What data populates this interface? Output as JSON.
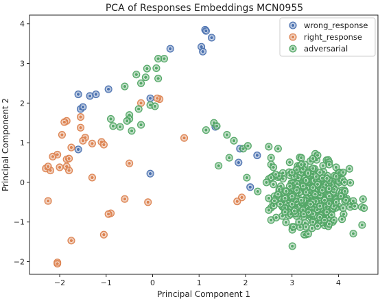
{
  "chart_data": {
    "type": "scatter",
    "title": "PCA of Responses Embeddings MCN0955",
    "xlabel": "Principal Component 1",
    "ylabel": "Principal Component 2",
    "xlim": [
      -2.65,
      4.85
    ],
    "ylim": [
      -2.32,
      4.22
    ],
    "xticks": [
      -2,
      -1,
      0,
      1,
      2,
      3,
      4
    ],
    "yticks": [
      -2,
      -1,
      0,
      1,
      2,
      3,
      4
    ],
    "grid": false,
    "legend_position": "top-right",
    "series": [
      {
        "name": "wrong_response",
        "color": "#4c72b0",
        "points": [
          [
            1.13,
            3.85
          ],
          [
            1.15,
            3.82
          ],
          [
            1.27,
            3.65
          ],
          [
            1.05,
            3.42
          ],
          [
            1.08,
            3.3
          ],
          [
            0.38,
            3.37
          ],
          [
            -0.95,
            2.35
          ],
          [
            -1.35,
            2.18
          ],
          [
            -1.22,
            2.22
          ],
          [
            -1.6,
            2.22
          ],
          [
            -1.55,
            1.85
          ],
          [
            -1.5,
            1.9
          ],
          [
            -0.05,
            2.12
          ],
          [
            -1.6,
            0.83
          ],
          [
            1.35,
            1.4
          ],
          [
            1.88,
            0.85
          ],
          [
            1.85,
            0.5
          ],
          [
            2.25,
            0.68
          ],
          [
            2.1,
            -0.12
          ],
          [
            -0.05,
            0.22
          ]
        ]
      },
      {
        "name": "right_response",
        "color": "#dd8452",
        "points": [
          [
            0.15,
            2.1
          ],
          [
            0.1,
            2.12
          ],
          [
            -0.25,
            2.0
          ],
          [
            -1.55,
            1.65
          ],
          [
            -1.85,
            1.55
          ],
          [
            -1.9,
            1.52
          ],
          [
            -1.55,
            1.38
          ],
          [
            -1.95,
            1.2
          ],
          [
            -1.45,
            1.13
          ],
          [
            -1.5,
            1.05
          ],
          [
            -1.1,
            1.02
          ],
          [
            -1.3,
            0.98
          ],
          [
            -1.05,
            0.95
          ],
          [
            -1.75,
            0.88
          ],
          [
            -2.05,
            0.7
          ],
          [
            -2.15,
            0.65
          ],
          [
            -1.85,
            0.58
          ],
          [
            -1.8,
            0.6
          ],
          [
            -2.3,
            0.35
          ],
          [
            -2.2,
            0.3
          ],
          [
            -2.25,
            0.4
          ],
          [
            -1.85,
            0.4
          ],
          [
            -2.0,
            0.38
          ],
          [
            -1.8,
            0.3
          ],
          [
            -0.5,
            0.48
          ],
          [
            -1.3,
            0.12
          ],
          [
            0.68,
            1.12
          ],
          [
            -2.25,
            -0.47
          ],
          [
            -0.6,
            -0.42
          ],
          [
            -0.1,
            -0.5
          ],
          [
            -0.9,
            -0.78
          ],
          [
            -0.95,
            -0.8
          ],
          [
            -1.05,
            -1.32
          ],
          [
            -1.75,
            -1.47
          ],
          [
            -2.05,
            -2.02
          ],
          [
            -2.05,
            -2.05
          ],
          [
            1.82,
            -0.48
          ],
          [
            1.92,
            -0.38
          ]
        ]
      },
      {
        "name": "adversarial",
        "color": "#55a868",
        "points": [
          [
            0.12,
            3.12
          ],
          [
            0.25,
            3.12
          ],
          [
            -0.12,
            2.87
          ],
          [
            0.08,
            2.88
          ],
          [
            -0.35,
            2.72
          ],
          [
            -0.15,
            2.65
          ],
          [
            0.12,
            2.62
          ],
          [
            -0.6,
            2.42
          ],
          [
            -0.25,
            2.5
          ],
          [
            -0.05,
            1.95
          ],
          [
            0.05,
            1.92
          ],
          [
            -0.3,
            1.85
          ],
          [
            -0.5,
            1.7
          ],
          [
            -0.5,
            1.6
          ],
          [
            -0.55,
            1.55
          ],
          [
            -0.9,
            1.6
          ],
          [
            -0.85,
            1.42
          ],
          [
            -0.7,
            1.4
          ],
          [
            -0.25,
            1.45
          ],
          [
            -0.45,
            1.3
          ],
          [
            1.32,
            1.5
          ],
          [
            1.38,
            1.42
          ],
          [
            1.15,
            1.32
          ],
          [
            1.6,
            1.2
          ],
          [
            1.75,
            1.05
          ],
          [
            1.95,
            0.85
          ],
          [
            2.05,
            0.92
          ],
          [
            1.42,
            0.42
          ],
          [
            1.65,
            0.62
          ],
          [
            2.5,
            0.9
          ],
          [
            2.7,
            0.85
          ],
          [
            2.55,
            0.62
          ],
          [
            2.55,
            0.45
          ],
          [
            2.6,
            0.38
          ],
          [
            2.65,
            0.2
          ],
          [
            2.55,
            0.12
          ],
          [
            2.45,
            0.0
          ],
          [
            2.6,
            -0.05
          ],
          [
            2.7,
            -0.3
          ],
          [
            2.5,
            -0.4
          ],
          [
            2.75,
            -0.55
          ],
          [
            2.5,
            -0.7
          ],
          [
            2.55,
            -0.95
          ],
          [
            2.85,
            -0.4
          ],
          [
            2.95,
            -0.1
          ],
          [
            3.05,
            0.15
          ],
          [
            3.2,
            0.45
          ],
          [
            3.1,
            0.32
          ],
          [
            3.0,
            0.25
          ],
          [
            3.3,
            0.05
          ],
          [
            3.1,
            -0.2
          ],
          [
            3.2,
            -0.45
          ],
          [
            3.05,
            -0.72
          ],
          [
            3.25,
            -0.8
          ],
          [
            3.4,
            -0.55
          ],
          [
            3.5,
            -0.3
          ],
          [
            3.55,
            -0.05
          ],
          [
            3.6,
            0.25
          ],
          [
            3.45,
            0.35
          ],
          [
            3.6,
            -0.6
          ],
          [
            3.7,
            -0.45
          ],
          [
            3.75,
            -0.75
          ],
          [
            3.8,
            -0.35
          ],
          [
            3.9,
            -0.6
          ],
          [
            3.95,
            -0.5
          ],
          [
            4.05,
            -0.35
          ],
          [
            3.85,
            -0.82
          ],
          [
            3.6,
            -0.88
          ],
          [
            3.45,
            -1.0
          ],
          [
            3.3,
            -1.12
          ],
          [
            3.9,
            -0.95
          ],
          [
            4.1,
            -0.65
          ],
          [
            4.25,
            -0.62
          ],
          [
            4.35,
            -0.6
          ],
          [
            4.5,
            -0.62
          ],
          [
            4.55,
            -0.65
          ],
          [
            3.5,
            0.72
          ],
          [
            3.55,
            0.68
          ],
          [
            3.2,
            0.62
          ],
          [
            3.45,
            0.6
          ],
          [
            3.8,
            0.45
          ],
          [
            3.95,
            0.38
          ],
          [
            4.1,
            0.25
          ],
          [
            3.95,
            0.15
          ],
          [
            3.8,
            0.05
          ],
          [
            3.3,
            -0.25
          ],
          [
            3.0,
            -0.55
          ],
          [
            2.85,
            -0.75
          ],
          [
            3.15,
            -1.0
          ],
          [
            3.35,
            -1.3
          ],
          [
            3.55,
            -1.1
          ],
          [
            3.7,
            -0.95
          ],
          [
            3.8,
            -1.05
          ],
          [
            3.65,
            -0.2
          ],
          [
            3.75,
            0.1
          ]
        ]
      }
    ],
    "cluster": {
      "series": "adversarial",
      "count": 320,
      "cx": 3.42,
      "cy": -0.32,
      "sx": 0.4,
      "sy": 0.38
    }
  }
}
